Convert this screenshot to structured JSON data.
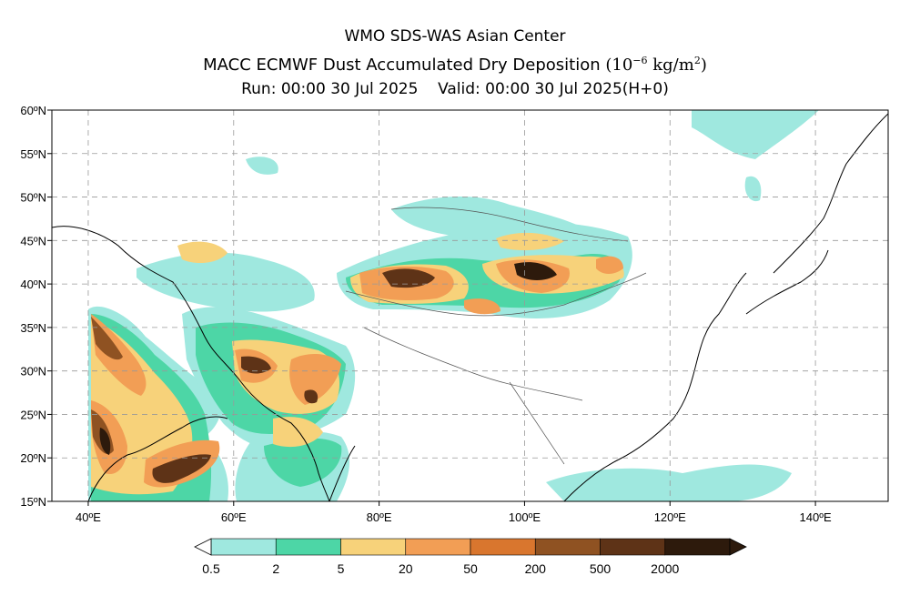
{
  "header": {
    "center_name": "WMO SDS-WAS Asian Center",
    "product_title": "MACC ECMWF Dust Accumulated Dry Deposition",
    "units_open": "(10",
    "units_exp": "−6",
    "units_mid": " kg/m",
    "units_sq": "2",
    "units_close": ")",
    "run_text": "Run: 00:00 30 Jul 2025",
    "valid_text": "Valid: 00:00 30 Jul 2025(H+0)"
  },
  "map": {
    "lat_ticks": [
      "15ºN",
      "20ºN",
      "25ºN",
      "30ºN",
      "35ºN",
      "40ºN",
      "45ºN",
      "50ºN",
      "55ºN",
      "60ºN"
    ],
    "lon_ticks": [
      "40ºE",
      "60ºE",
      "80ºE",
      "100ºE",
      "120ºE",
      "140ºE"
    ],
    "grid": "dashed",
    "extent": {
      "lon": [
        35,
        150
      ],
      "lat": [
        15,
        60
      ]
    }
  },
  "colorbar": {
    "labels": [
      "0.5",
      "2",
      "5",
      "20",
      "50",
      "200",
      "500",
      "2000"
    ],
    "colors": [
      "#9fe8df",
      "#4dd6a6",
      "#f7d27a",
      "#f29e55",
      "#d9762e",
      "#8f5222",
      "#5e3317",
      "#2d1a0c"
    ]
  }
}
